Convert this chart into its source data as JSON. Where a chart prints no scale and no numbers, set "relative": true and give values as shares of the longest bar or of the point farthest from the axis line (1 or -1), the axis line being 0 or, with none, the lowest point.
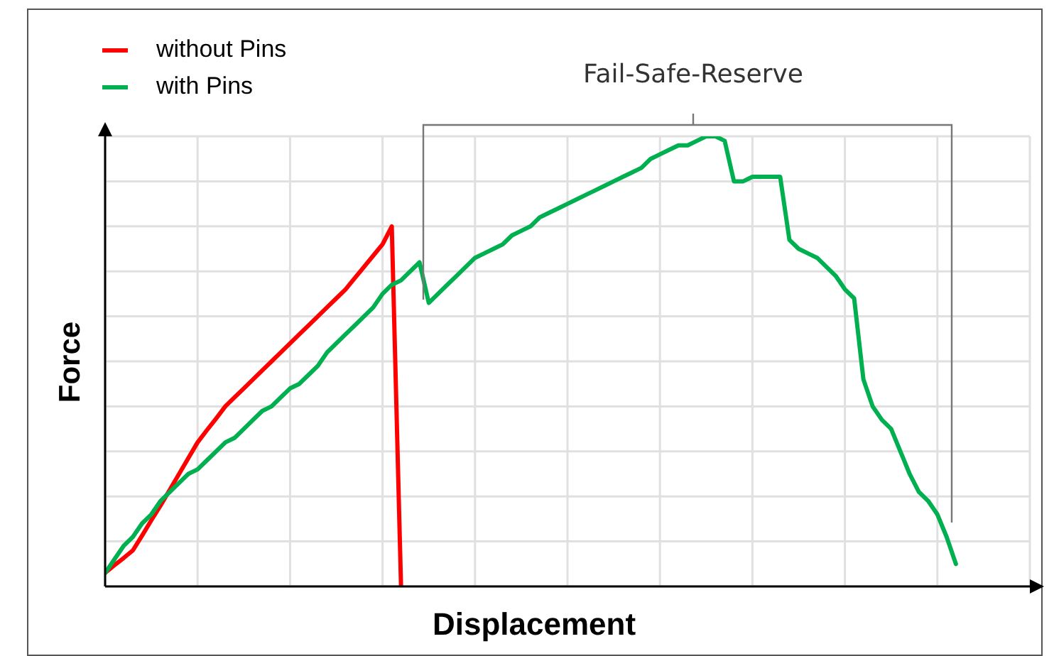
{
  "chart_data": {
    "type": "line",
    "relative": true,
    "xlabel": "Displacement",
    "ylabel": "Force",
    "legend": "top left",
    "grid": true,
    "marker": "none",
    "annotations": [
      "Fail-Safe-Reserve"
    ],
    "categories": [
      null,
      null,
      null,
      null,
      null,
      null,
      null,
      null,
      null,
      null,
      null,
      null,
      null,
      null,
      null,
      null,
      null,
      null,
      null,
      null,
      null,
      null,
      null,
      null,
      null,
      null,
      null,
      null,
      null,
      null,
      null,
      null,
      null,
      null,
      null,
      null,
      null,
      null,
      null,
      null,
      null,
      null,
      null,
      null,
      null,
      null,
      null,
      null,
      null,
      null,
      null,
      null,
      null,
      null,
      null,
      null,
      null,
      null,
      null,
      null,
      null,
      null,
      null,
      null,
      null,
      null,
      null,
      null,
      null,
      null,
      null,
      null,
      null,
      null,
      null,
      null,
      null,
      null,
      null,
      null,
      null,
      null,
      null,
      null,
      null,
      null,
      null,
      null,
      null,
      null,
      null,
      null,
      null,
      null,
      null,
      null,
      null,
      null,
      null,
      null,
      null
    ],
    "series": [
      {
        "name": "without Pins",
        "color": "#ff0000",
        "values": [
          0.03,
          0.047,
          0.063,
          0.08,
          0.113,
          0.147,
          0.18,
          0.215,
          0.25,
          0.285,
          0.32,
          0.347,
          0.373,
          0.4,
          0.42,
          0.44,
          0.46,
          0.48,
          0.5,
          0.52,
          0.54,
          0.56,
          0.58,
          0.6,
          0.62,
          0.64,
          0.66,
          0.685,
          0.71,
          0.735,
          0.76,
          0.8,
          0,
          null,
          null,
          null,
          null,
          null,
          null,
          null,
          null,
          null,
          null,
          null,
          null,
          null,
          null,
          null,
          null,
          null,
          null,
          null,
          null,
          null,
          null,
          null,
          null,
          null,
          null,
          null,
          null,
          null,
          null,
          null,
          null,
          null,
          null,
          null,
          null,
          null,
          null,
          null,
          null,
          null,
          null,
          null,
          null,
          null,
          null,
          null,
          null,
          null,
          null,
          null,
          null,
          null,
          null,
          null,
          null,
          null,
          null,
          null,
          null,
          null,
          null,
          null,
          null,
          null,
          null,
          null,
          null
        ]
      },
      {
        "name": "with Pins",
        "color": "#00b050",
        "values": [
          0.03,
          0.06,
          0.09,
          0.11,
          0.14,
          0.16,
          0.19,
          0.21,
          0.23,
          0.25,
          0.26,
          0.28,
          0.3,
          0.32,
          0.33,
          0.35,
          0.37,
          0.39,
          0.4,
          0.42,
          0.44,
          0.45,
          0.47,
          0.49,
          0.52,
          0.54,
          0.56,
          0.58,
          0.6,
          0.62,
          0.65,
          0.67,
          0.68,
          0.7,
          0.72,
          0.63,
          0.65,
          0.67,
          0.69,
          0.71,
          0.73,
          0.74,
          0.75,
          0.76,
          0.78,
          0.79,
          0.8,
          0.82,
          0.83,
          0.84,
          0.85,
          0.86,
          0.87,
          0.88,
          0.89,
          0.9,
          0.91,
          0.92,
          0.93,
          0.95,
          0.96,
          0.97,
          0.98,
          0.98,
          0.99,
          1,
          1,
          0.99,
          0.9,
          0.9,
          0.91,
          0.91,
          0.91,
          0.91,
          0.77,
          0.75,
          0.74,
          0.73,
          0.71,
          0.69,
          0.66,
          0.64,
          0.46,
          0.4,
          0.37,
          0.35,
          0.3,
          0.25,
          0.21,
          0.19,
          0.16,
          0.11,
          0.05,
          null,
          null,
          null,
          null,
          null,
          null,
          null,
          null
        ]
      }
    ]
  }
}
